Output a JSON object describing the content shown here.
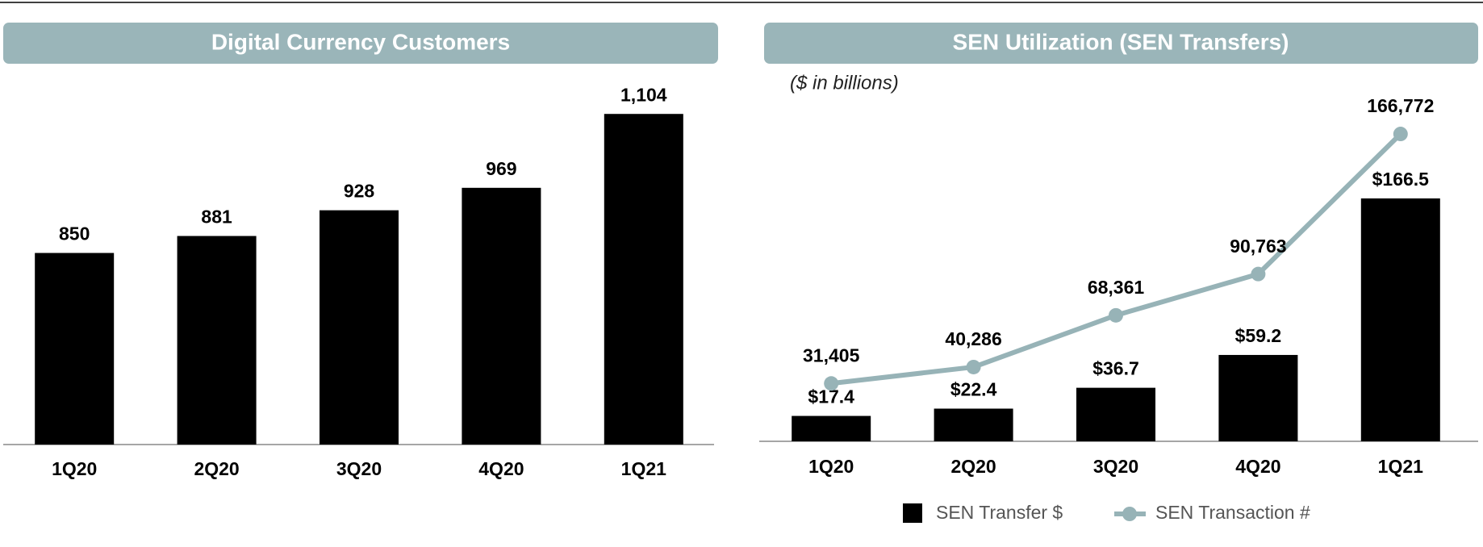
{
  "chart_data": [
    {
      "type": "bar",
      "title": "Digital Currency Customers",
      "categories": [
        "1Q20",
        "2Q20",
        "3Q20",
        "4Q20",
        "1Q21"
      ],
      "values": [
        850,
        881,
        928,
        969,
        1104
      ],
      "value_labels": [
        "850",
        "881",
        "928",
        "969",
        "1,104"
      ],
      "color": "#000000",
      "ylim": [
        500,
        1150
      ]
    },
    {
      "type": "combo",
      "title": "SEN Utilization (SEN Transfers)",
      "subtitle": "($ in billions)",
      "categories": [
        "1Q20",
        "2Q20",
        "3Q20",
        "4Q20",
        "1Q21"
      ],
      "series": [
        {
          "name": "SEN Transfer $",
          "type": "bar",
          "color": "#000000",
          "values": [
            17.4,
            22.4,
            36.7,
            59.2,
            166.5
          ],
          "value_labels": [
            "$17.4",
            "$22.4",
            "$36.7",
            "$59.2",
            "$166.5"
          ]
        },
        {
          "name": "SEN Transaction #",
          "type": "line",
          "axis": "y2",
          "color": "#97b3b7",
          "values": [
            31405,
            40286,
            68361,
            90763,
            166772
          ],
          "value_labels": [
            "31,405",
            "40,286",
            "68,361",
            "90,763",
            "166,772"
          ]
        }
      ],
      "ylim": [
        0,
        240
      ],
      "y2lim": [
        0,
        190000
      ]
    }
  ]
}
